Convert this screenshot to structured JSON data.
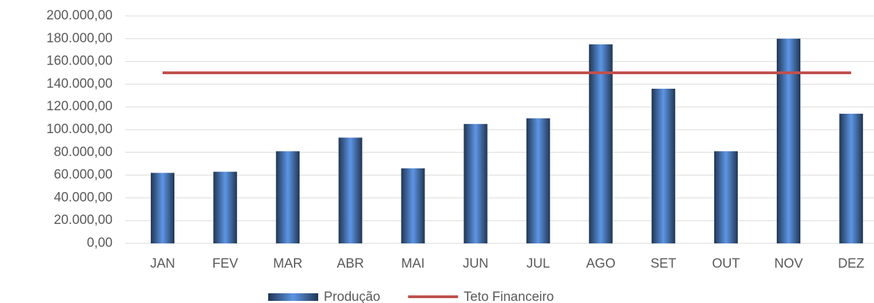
{
  "chart_data": {
    "type": "bar",
    "categories": [
      "JAN",
      "FEV",
      "MAR",
      "ABR",
      "MAI",
      "JUN",
      "JUL",
      "AGO",
      "SET",
      "OUT",
      "NOV",
      "DEZ"
    ],
    "series": [
      {
        "name": "Produção",
        "type": "bar",
        "color": "#4a78b8",
        "values": [
          62000,
          63000,
          81000,
          93000,
          66000,
          105000,
          110000,
          175000,
          136000,
          81000,
          180000,
          114000
        ]
      },
      {
        "name": "Teto Financeiro",
        "type": "line",
        "color": "#c0504d",
        "values": [
          150000,
          150000,
          150000,
          150000,
          150000,
          150000,
          150000,
          150000,
          150000,
          150000,
          150000,
          150000
        ]
      }
    ],
    "ylim": [
      0,
      200000
    ],
    "yticks": [
      {
        "value": 0,
        "label": "0,00"
      },
      {
        "value": 20000,
        "label": "20.000,00"
      },
      {
        "value": 40000,
        "label": "40.000,00"
      },
      {
        "value": 60000,
        "label": "60.000,00"
      },
      {
        "value": 80000,
        "label": "80.000,00"
      },
      {
        "value": 100000,
        "label": "100.000,00"
      },
      {
        "value": 120000,
        "label": "120.000,00"
      },
      {
        "value": 140000,
        "label": "140.000,00"
      },
      {
        "value": 160000,
        "label": "160.000,00"
      },
      {
        "value": 180000,
        "label": "180.000,00"
      },
      {
        "value": 200000,
        "label": "200.000,00"
      }
    ],
    "grid": true,
    "legend": "bottom"
  }
}
